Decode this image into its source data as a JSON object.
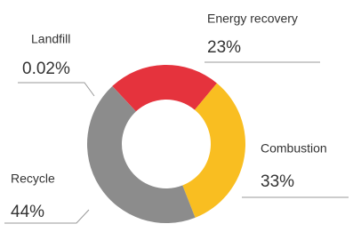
{
  "chart_data": {
    "type": "pie",
    "donut": true,
    "categories": [
      "Energy recovery",
      "Combustion",
      "Recycle",
      "Landfill"
    ],
    "values": [
      23,
      33,
      44,
      0.02
    ],
    "value_labels": [
      "23%",
      "33%",
      "44%",
      "0.02%"
    ],
    "colors": [
      "#e5333d",
      "#f9be21",
      "#8c8c8c",
      "#7a7a7a"
    ]
  }
}
